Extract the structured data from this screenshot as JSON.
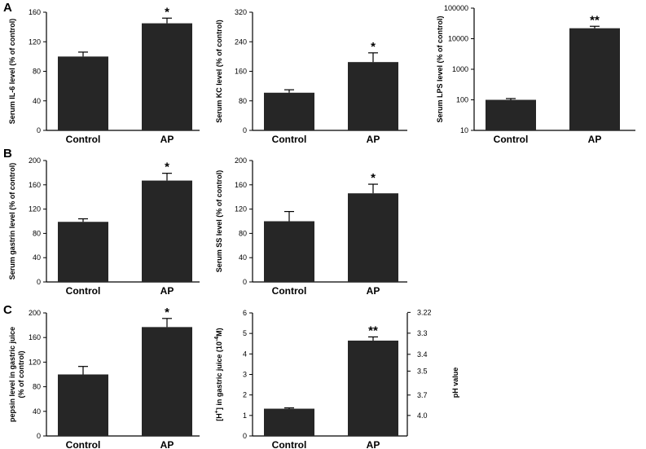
{
  "panels": {
    "A": "A",
    "B": "B",
    "C": "C"
  },
  "chart_data": [
    {
      "type": "bar",
      "categories": [
        "Control",
        "AP"
      ],
      "values": [
        100,
        145
      ],
      "errors": [
        6,
        7
      ],
      "ylabel": "Serum IL-6 level (% of control)",
      "ylim": [
        0,
        160
      ],
      "yticks": [
        0,
        40,
        80,
        120,
        160
      ],
      "annotations": [
        "",
        "*"
      ],
      "bar_color": "#262626"
    },
    {
      "type": "bar",
      "categories": [
        "Control",
        "AP"
      ],
      "values": [
        102,
        185
      ],
      "errors": [
        8,
        25
      ],
      "ylabel": "Serum KC level (% of control)",
      "ylim": [
        0,
        320
      ],
      "yticks": [
        0,
        80,
        160,
        240,
        320
      ],
      "annotations": [
        "",
        "*"
      ],
      "bar_color": "#262626"
    },
    {
      "type": "bar",
      "scale": "log",
      "categories": [
        "Control",
        "AP"
      ],
      "values": [
        100,
        22000
      ],
      "errors": [
        10,
        3500
      ],
      "ylabel": "Serum LPS level (% of control)",
      "ylim": [
        10,
        100000
      ],
      "yticks": [
        10,
        100,
        1000,
        10000,
        100000
      ],
      "annotations": [
        "",
        "**"
      ],
      "bar_color": "#262626"
    },
    {
      "type": "bar",
      "categories": [
        "Control",
        "AP"
      ],
      "values": [
        99,
        167
      ],
      "errors": [
        5,
        12
      ],
      "ylabel": "Serum gastrin level (% of control)",
      "ylim": [
        0,
        200
      ],
      "yticks": [
        0,
        40,
        80,
        120,
        160,
        200
      ],
      "annotations": [
        "",
        "*"
      ],
      "bar_color": "#262626"
    },
    {
      "type": "bar",
      "categories": [
        "Control",
        "AP"
      ],
      "values": [
        100,
        146
      ],
      "errors": [
        16,
        15
      ],
      "ylabel": "Serum SS level (% of control)",
      "ylim": [
        0,
        200
      ],
      "yticks": [
        0,
        40,
        80,
        120,
        160,
        200
      ],
      "annotations": [
        "",
        "*"
      ],
      "bar_color": "#262626"
    },
    {
      "type": "bar",
      "categories": [
        "Control",
        "AP"
      ],
      "values": [
        100,
        177
      ],
      "errors": [
        13,
        14
      ],
      "ylabel": [
        "pepsin level in gastric juice",
        "(% of control)"
      ],
      "ylim": [
        0,
        200
      ],
      "yticks": [
        0,
        40,
        80,
        120,
        160,
        200
      ],
      "annotations": [
        "",
        "*"
      ],
      "bar_color": "#262626"
    },
    {
      "type": "bar",
      "categories": [
        "Control",
        "AP"
      ],
      "values": [
        1.33,
        4.65
      ],
      "errors": [
        0.04,
        0.18
      ],
      "ylabel": "[H+] in gastric juice (10-4M)",
      "ylim": [
        0,
        6
      ],
      "yticks": [
        0,
        1,
        2,
        3,
        4,
        5,
        6
      ],
      "y2label": "pH value",
      "y2ticks": [
        3.22,
        3.3,
        3.4,
        3.5,
        3.7,
        4.0
      ],
      "y2tick_labels": [
        "3.22",
        "3.3",
        "3.4",
        "3.5",
        "3.7",
        "4.0"
      ],
      "annotations": [
        "",
        "**"
      ],
      "bar_color": "#262626"
    }
  ]
}
